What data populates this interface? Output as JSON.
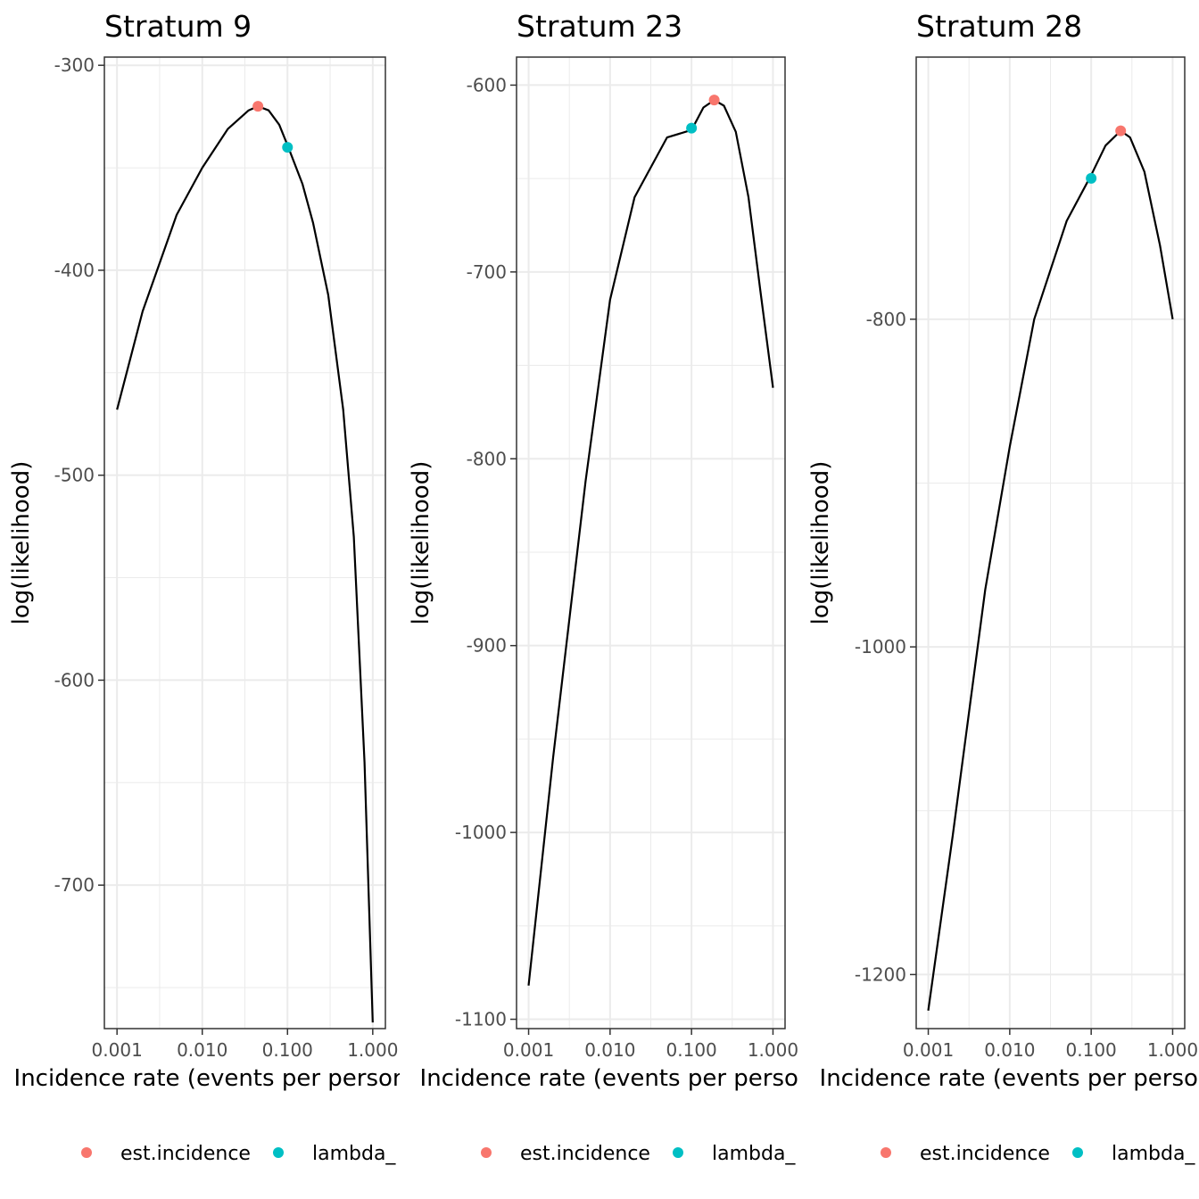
{
  "chart_data": [
    {
      "type": "line",
      "title": "Stratum 9",
      "xlabel": "Incidence rate (events per person-year)",
      "ylabel": "log(likelihood)",
      "x_scale": "log10",
      "xlim": [
        0.001,
        1.0
      ],
      "ylim": [
        -770,
        -296
      ],
      "x_ticks": [
        "0.001",
        "0.010",
        "0.100",
        "1.000"
      ],
      "y_ticks": [
        -300,
        -400,
        -500,
        -600,
        -700
      ],
      "y_tick_labels": [
        "-300",
        "-400",
        "-500",
        "-600",
        "-700"
      ],
      "grid": true,
      "series": [
        {
          "type": "line",
          "color": "#000000",
          "points": [
            [
              0.001,
              -468
            ],
            [
              0.002,
              -420
            ],
            [
              0.005,
              -373
            ],
            [
              0.01,
              -350
            ],
            [
              0.02,
              -331
            ],
            [
              0.035,
              -322
            ],
            [
              0.045,
              -320
            ],
            [
              0.06,
              -322
            ],
            [
              0.08,
              -329
            ],
            [
              0.1,
              -339
            ],
            [
              0.15,
              -358
            ],
            [
              0.2,
              -377
            ],
            [
              0.3,
              -412
            ],
            [
              0.45,
              -468
            ],
            [
              0.6,
              -530
            ],
            [
              0.8,
              -640
            ],
            [
              1.0,
              -767
            ]
          ]
        },
        {
          "name": "est.incidence",
          "type": "point",
          "color": "#F8766D",
          "x": 0.045,
          "y": -320
        },
        {
          "name": "lambda_",
          "type": "point",
          "color": "#00BFC4",
          "x": 0.1,
          "y": -340
        }
      ],
      "legend": {
        "position": "bottom",
        "entries": [
          "est.incidence",
          "lambda_"
        ]
      }
    },
    {
      "type": "line",
      "title": "Stratum 23",
      "xlabel": "Incidence rate (events per person-year)",
      "ylabel": "log(likelihood)",
      "x_scale": "log10",
      "xlim": [
        0.001,
        1.0
      ],
      "ylim": [
        -1105,
        -585
      ],
      "x_ticks": [
        "0.001",
        "0.010",
        "0.100",
        "1.000"
      ],
      "y_ticks": [
        -600,
        -700,
        -800,
        -900,
        -1000,
        -1100
      ],
      "y_tick_labels": [
        "-600",
        "-700",
        "-800",
        "-900",
        "-1000",
        "-1100"
      ],
      "grid": true,
      "series": [
        {
          "type": "line",
          "color": "#000000",
          "points": [
            [
              0.001,
              -1082
            ],
            [
              0.002,
              -960
            ],
            [
              0.005,
              -812
            ],
            [
              0.01,
              -715
            ],
            [
              0.02,
              -660
            ],
            [
              0.05,
              -628
            ],
            [
              0.1,
              -624
            ],
            [
              0.14,
              -612
            ],
            [
              0.19,
              -608
            ],
            [
              0.25,
              -611
            ],
            [
              0.35,
              -625
            ],
            [
              0.5,
              -660
            ],
            [
              0.7,
              -710
            ],
            [
              1.0,
              -762
            ]
          ]
        },
        {
          "name": "est.incidence",
          "type": "point",
          "color": "#F8766D",
          "x": 0.19,
          "y": -608
        },
        {
          "name": "lambda_",
          "type": "point",
          "color": "#00BFC4",
          "x": 0.1,
          "y": -623
        }
      ],
      "legend": {
        "position": "bottom",
        "entries": [
          "est.incidence",
          "lambda_"
        ]
      }
    },
    {
      "type": "line",
      "title": "Stratum 28",
      "xlabel": "Incidence rate (events per person-year)",
      "ylabel": "log(likelihood)",
      "x_scale": "log10",
      "xlim": [
        0.001,
        1.0
      ],
      "ylim": [
        -1233,
        -640
      ],
      "x_ticks": [
        "0.001",
        "0.010",
        "0.100",
        "1.000"
      ],
      "y_ticks": [
        -800,
        -1000,
        -1200
      ],
      "y_tick_labels": [
        "-800",
        "-1000",
        "-1200"
      ],
      "grid": true,
      "series": [
        {
          "type": "line",
          "color": "#000000",
          "points": [
            [
              0.001,
              -1222
            ],
            [
              0.002,
              -1115
            ],
            [
              0.005,
              -965
            ],
            [
              0.01,
              -878
            ],
            [
              0.02,
              -800
            ],
            [
              0.05,
              -740
            ],
            [
              0.1,
              -712
            ],
            [
              0.15,
              -694
            ],
            [
              0.23,
              -685
            ],
            [
              0.3,
              -689
            ],
            [
              0.45,
              -710
            ],
            [
              0.7,
              -755
            ],
            [
              1.0,
              -800
            ]
          ]
        },
        {
          "name": "est.incidence",
          "type": "point",
          "color": "#F8766D",
          "x": 0.23,
          "y": -685
        },
        {
          "name": "lambda_",
          "type": "point",
          "color": "#00BFC4",
          "x": 0.1,
          "y": -714
        }
      ],
      "legend": {
        "position": "bottom",
        "entries": [
          "est.incidence",
          "lambda_"
        ]
      }
    }
  ]
}
